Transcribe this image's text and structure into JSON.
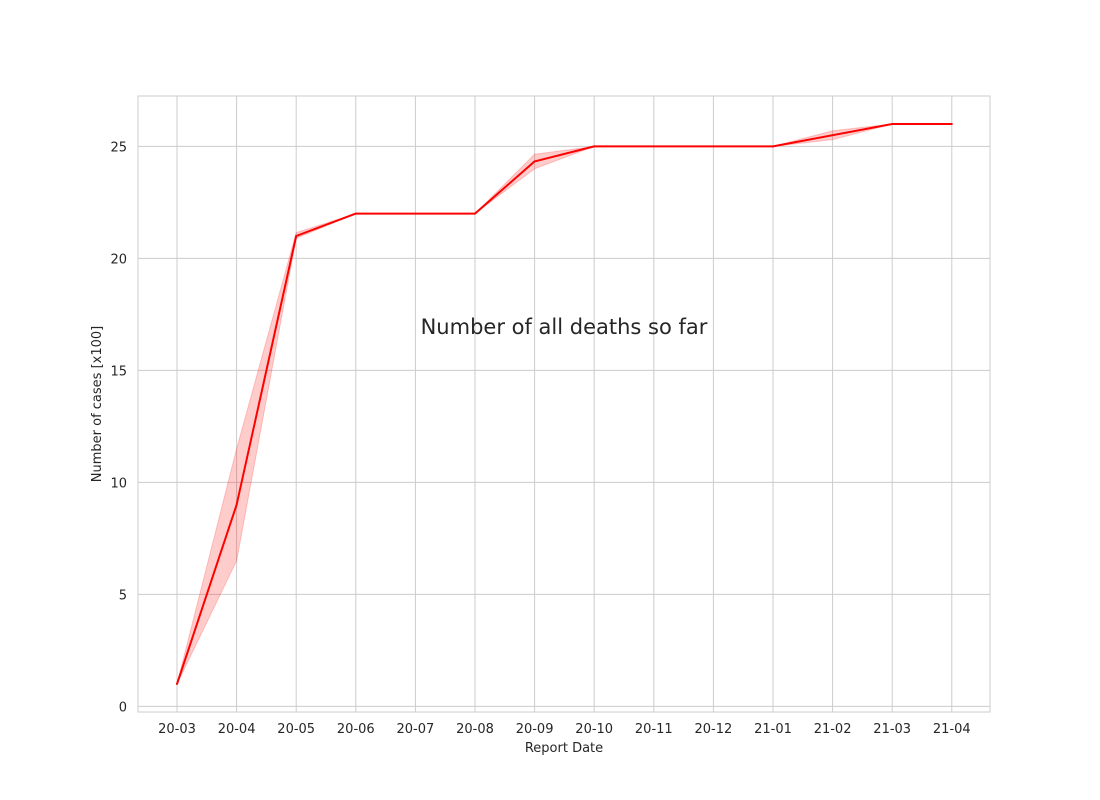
{
  "chart_data": {
    "type": "line",
    "title": "Number of all deaths so far",
    "xlabel": "Report Date",
    "ylabel": "Number of cases [x100]",
    "categories": [
      "20-03",
      "20-04",
      "20-05",
      "20-06",
      "20-07",
      "20-08",
      "20-09",
      "20-10",
      "20-11",
      "20-12",
      "21-01",
      "21-02",
      "21-03",
      "21-04"
    ],
    "series": [
      {
        "values": [
          1,
          9,
          21,
          22,
          22,
          22,
          24.33,
          25,
          25,
          25,
          25,
          25.5,
          26,
          26
        ],
        "ci_lower": [
          1,
          6.5,
          20.9,
          22,
          22,
          22,
          24,
          25,
          25,
          25,
          25,
          25.3,
          26,
          26
        ],
        "ci_upper": [
          1,
          11.5,
          21.15,
          22,
          22,
          22,
          24.65,
          25,
          25,
          25,
          25,
          25.7,
          26,
          26
        ],
        "color": "#ff0000",
        "band_color": "#ff0000"
      }
    ],
    "yticks": [
      "0",
      "5",
      "10",
      "15",
      "20",
      "25"
    ],
    "ylim": [
      -0.25,
      27.25
    ],
    "grid": true
  }
}
